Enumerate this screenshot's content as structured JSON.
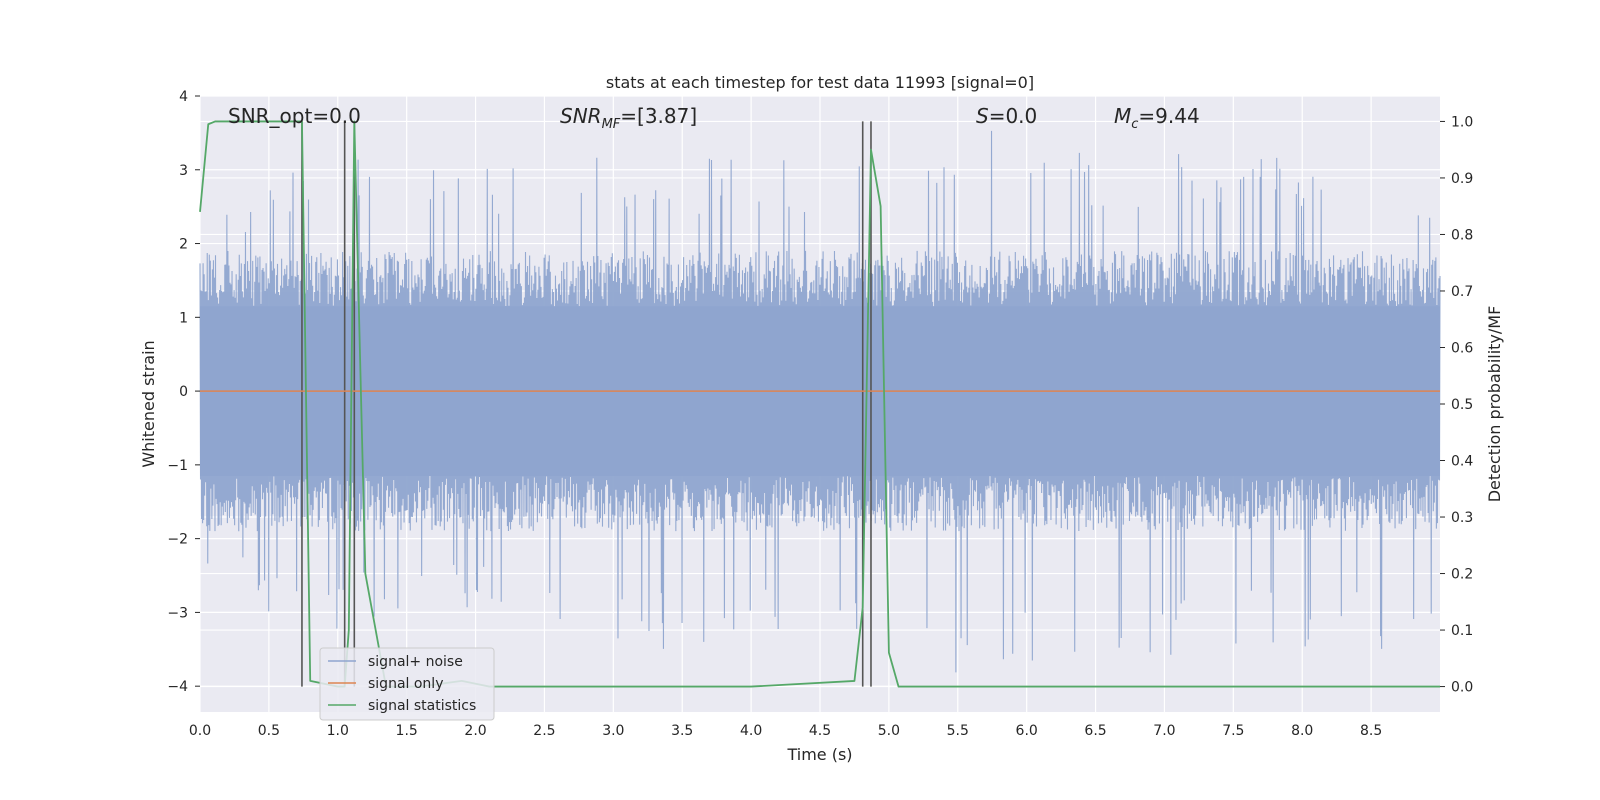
{
  "chart_data": {
    "type": "line",
    "title": "stats at each timestep for test data 11993 [signal=0]",
    "xlabel": "Time (s)",
    "ylabel_left": "Whitened strain",
    "ylabel_right": "Detection probability/MF",
    "xlim": [
      0.0,
      9.0
    ],
    "ylim_left": [
      -4.35,
      4.0
    ],
    "ylim_right": [
      -0.045,
      1.045
    ],
    "x_ticks": [
      "0.0",
      "0.5",
      "1.0",
      "1.5",
      "2.0",
      "2.5",
      "3.0",
      "3.5",
      "4.0",
      "4.5",
      "5.0",
      "5.5",
      "6.0",
      "6.5",
      "7.0",
      "7.5",
      "8.0",
      "8.5"
    ],
    "x_tick_values": [
      0.0,
      0.5,
      1.0,
      1.5,
      2.0,
      2.5,
      3.0,
      3.5,
      4.0,
      4.5,
      5.0,
      5.5,
      6.0,
      6.5,
      7.0,
      7.5,
      8.0,
      8.5
    ],
    "y_left_ticks": [
      "4",
      "3",
      "2",
      "1",
      "0",
      "−1",
      "−2",
      "−3",
      "−4"
    ],
    "y_left_tick_values": [
      4,
      3,
      2,
      1,
      0,
      -1,
      -2,
      -3,
      -4
    ],
    "y_right_ticks": [
      "1.0",
      "0.9",
      "0.8",
      "0.7",
      "0.6",
      "0.5",
      "0.4",
      "0.3",
      "0.2",
      "0.1",
      "0.0"
    ],
    "y_right_tick_values": [
      1.0,
      0.9,
      0.8,
      0.7,
      0.6,
      0.5,
      0.4,
      0.3,
      0.2,
      0.1,
      0.0
    ],
    "grid": true,
    "legend_position": "lower-left",
    "annotations": {
      "snr_opt": "SNR_opt=0.0",
      "snr_mf_base": "SNR",
      "snr_mf_sub": "MF",
      "snr_mf_val": "=[3.87]",
      "s_label": "S",
      "s_val": "=0.0",
      "mc_base": "M",
      "mc_sub": "c",
      "mc_val": "=9.44"
    },
    "vertical_lines_x": [
      0.74,
      1.05,
      1.12,
      4.81,
      4.87
    ],
    "series": [
      {
        "name": "signal+ noise",
        "color": "#8fa5cf",
        "axis": "left",
        "envelope_peaks": [
          {
            "x": 0.05,
            "y": 2.9
          },
          {
            "x": 0.3,
            "y": 2.4
          },
          {
            "x": 0.7,
            "y": 3.3
          },
          {
            "x": 1.0,
            "y": 3.2
          },
          {
            "x": 1.3,
            "y": 3.3
          },
          {
            "x": 2.2,
            "y": 3.0
          },
          {
            "x": 2.6,
            "y": 3.4
          },
          {
            "x": 3.3,
            "y": 3.2
          },
          {
            "x": 4.0,
            "y": 3.2
          },
          {
            "x": 4.5,
            "y": 3.1
          },
          {
            "x": 5.6,
            "y": 3.6
          },
          {
            "x": 6.5,
            "y": 3.2
          },
          {
            "x": 7.6,
            "y": 3.4
          },
          {
            "x": 8.3,
            "y": 3.1
          },
          {
            "x": 8.9,
            "y": 3.0
          }
        ],
        "envelope_troughs": [
          {
            "x": 0.4,
            "y": -3.0
          },
          {
            "x": 1.0,
            "y": -3.3
          },
          {
            "x": 1.85,
            "y": -3.0
          },
          {
            "x": 3.5,
            "y": -3.6
          },
          {
            "x": 4.5,
            "y": -3.3
          },
          {
            "x": 5.65,
            "y": -3.95
          },
          {
            "x": 6.7,
            "y": -4.0
          },
          {
            "x": 7.5,
            "y": -3.5
          },
          {
            "x": 8.45,
            "y": -3.55
          }
        ]
      },
      {
        "name": "signal only",
        "color": "#dd8452",
        "axis": "left",
        "x": [
          0.0,
          9.0
        ],
        "y": [
          0.0,
          0.0
        ]
      },
      {
        "name": "signal statistics",
        "color": "#55a868",
        "axis": "right",
        "x": [
          0.0,
          0.06,
          0.11,
          0.5,
          0.7,
          0.74,
          0.8,
          1.0,
          1.05,
          1.08,
          1.12,
          1.2,
          1.35,
          1.6,
          1.9,
          2.1,
          2.5,
          4.0,
          4.75,
          4.81,
          4.87,
          4.94,
          5.0,
          5.07,
          6.0,
          9.0
        ],
        "y": [
          0.84,
          0.995,
          1.0,
          1.0,
          1.0,
          1.0,
          0.01,
          0.0,
          0.0,
          0.1,
          1.0,
          0.2,
          0.0,
          0.0,
          0.01,
          0.0,
          0.0,
          0.0,
          0.01,
          0.14,
          0.95,
          0.85,
          0.06,
          0.0,
          0.0,
          0.0
        ]
      }
    ]
  }
}
